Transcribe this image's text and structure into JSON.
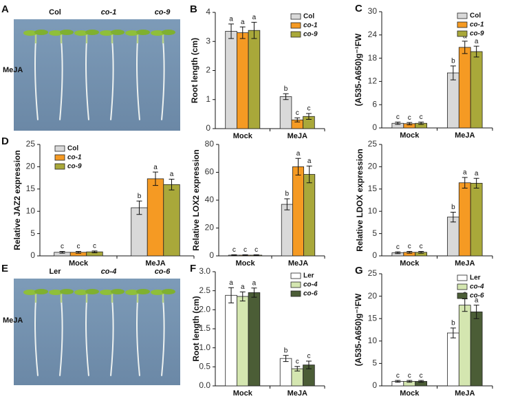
{
  "photos": [
    {
      "panel": "A",
      "labels": [
        "Col",
        "co-1",
        "co-9"
      ],
      "treatment": "MeJA"
    },
    {
      "panel": "E",
      "labels": [
        "Ler",
        "co-4",
        "co-6"
      ],
      "treatment": "MeJA"
    }
  ],
  "chart_data": [
    {
      "type": "bar",
      "panel": "B",
      "ylabel": "Root length (cm)",
      "categories": [
        "Mock",
        "MeJA"
      ],
      "legend": true,
      "ylim": [
        0,
        4
      ],
      "yticks": [
        0,
        1,
        2,
        3,
        4
      ],
      "series": [
        {
          "name": "Col",
          "color": "#d9d9d9",
          "values": [
            3.35,
            1.1
          ],
          "errors": [
            0.25,
            0.1
          ],
          "letters": [
            "a",
            "b"
          ]
        },
        {
          "name": "co-1",
          "color": "#f59a23",
          "values": [
            3.3,
            0.3
          ],
          "errors": [
            0.2,
            0.07
          ],
          "letters": [
            "a",
            "c"
          ]
        },
        {
          "name": "co-9",
          "color": "#a9a83a",
          "values": [
            3.38,
            0.42
          ],
          "errors": [
            0.28,
            0.1
          ],
          "letters": [
            "a",
            "c"
          ]
        }
      ]
    },
    {
      "type": "bar",
      "panel": "C",
      "ylabel": "(A535-A650)g⁻¹FW",
      "categories": [
        "Mock",
        "MeJA"
      ],
      "legend": true,
      "ylim": [
        0,
        30
      ],
      "yticks": [
        0,
        6,
        12,
        18,
        24,
        30
      ],
      "series": [
        {
          "name": "Col",
          "color": "#d9d9d9",
          "values": [
            1.2,
            14.2
          ],
          "errors": [
            0.3,
            1.8
          ],
          "letters": [
            "c",
            "b"
          ]
        },
        {
          "name": "co-1",
          "color": "#f59a23",
          "values": [
            1.1,
            20.8
          ],
          "errors": [
            0.3,
            1.6
          ],
          "letters": [
            "c",
            "a"
          ]
        },
        {
          "name": "co-9",
          "color": "#a9a83a",
          "values": [
            1.2,
            19.7
          ],
          "errors": [
            0.3,
            1.4
          ],
          "letters": [
            "c",
            "a"
          ]
        }
      ]
    },
    {
      "type": "bar",
      "panel": "D",
      "ylabel": "Relative JAZ2 expression",
      "categories": [
        "Mock",
        "MeJA"
      ],
      "legend": true,
      "ylim": [
        0,
        25
      ],
      "yticks": [
        0,
        5,
        10,
        15,
        20,
        25
      ],
      "series": [
        {
          "name": "Col",
          "color": "#d9d9d9",
          "values": [
            0.8,
            10.8
          ],
          "errors": [
            0.2,
            1.5
          ],
          "letters": [
            "c",
            "b"
          ]
        },
        {
          "name": "co-1",
          "color": "#f59a23",
          "values": [
            0.8,
            17.3
          ],
          "errors": [
            0.2,
            1.5
          ],
          "letters": [
            "c",
            "a"
          ]
        },
        {
          "name": "co-9",
          "color": "#a9a83a",
          "values": [
            0.9,
            16
          ],
          "errors": [
            0.2,
            1.2
          ],
          "letters": [
            "c",
            "a"
          ]
        }
      ]
    },
    {
      "type": "bar",
      "ylabel": "Relative LOX2 expression",
      "categories": [
        "Mock",
        "MeJA"
      ],
      "legend": false,
      "ylim": [
        0,
        80
      ],
      "yticks": [
        0,
        20,
        40,
        60,
        80
      ],
      "series": [
        {
          "name": "Col",
          "color": "#d9d9d9",
          "values": [
            0.5,
            37
          ],
          "errors": [
            0.3,
            4
          ],
          "letters": [
            "c",
            "b"
          ]
        },
        {
          "name": "co-1",
          "color": "#f59a23",
          "values": [
            0.5,
            64
          ],
          "errors": [
            0.3,
            6
          ],
          "letters": [
            "c",
            "a"
          ]
        },
        {
          "name": "co-9",
          "color": "#a9a83a",
          "values": [
            0.5,
            58.5
          ],
          "errors": [
            0.3,
            6
          ],
          "letters": [
            "c",
            "a"
          ]
        }
      ]
    },
    {
      "type": "bar",
      "ylabel": "Relative LDOX expression",
      "categories": [
        "Mock",
        "MeJA"
      ],
      "legend": false,
      "ylim": [
        0,
        25
      ],
      "yticks": [
        0,
        5,
        10,
        15,
        20,
        25
      ],
      "series": [
        {
          "name": "Col",
          "color": "#d9d9d9",
          "values": [
            0.7,
            8.7
          ],
          "errors": [
            0.2,
            1.1
          ],
          "letters": [
            "c",
            "b"
          ]
        },
        {
          "name": "co-1",
          "color": "#f59a23",
          "values": [
            0.8,
            16.4
          ],
          "errors": [
            0.2,
            1.2
          ],
          "letters": [
            "c",
            "a"
          ]
        },
        {
          "name": "co-9",
          "color": "#a9a83a",
          "values": [
            0.8,
            16.3
          ],
          "errors": [
            0.2,
            1.1
          ],
          "letters": [
            "c",
            "a"
          ]
        }
      ]
    },
    {
      "type": "bar",
      "panel": "F",
      "ylabel": "Root length (cm)",
      "categories": [
        "Mock",
        "MeJA"
      ],
      "legend": true,
      "ylim": [
        0,
        3
      ],
      "yticks": [
        {
          "value": 0,
          "label": "0.0"
        },
        {
          "value": 0.5,
          "label": "0.5"
        },
        {
          "value": 1,
          "label": "1.0"
        },
        {
          "value": 1.5,
          "label": "1.5"
        },
        {
          "value": 2,
          "label": "2.0"
        },
        {
          "value": 2.5,
          "label": "2.5"
        },
        {
          "value": 3,
          "label": "3.0"
        }
      ],
      "series": [
        {
          "name": "Ler",
          "color": "#ffffff",
          "values": [
            2.38,
            0.72
          ],
          "errors": [
            0.2,
            0.08
          ],
          "letters": [
            "a",
            "b"
          ]
        },
        {
          "name": "co-4",
          "color": "#d4e6b0",
          "values": [
            2.35,
            0.45
          ],
          "errors": [
            0.12,
            0.06
          ],
          "letters": [
            "a",
            "c"
          ]
        },
        {
          "name": "co-6",
          "color": "#4b5d36",
          "values": [
            2.45,
            0.55
          ],
          "errors": [
            0.12,
            0.1
          ],
          "letters": [
            "a",
            "c"
          ]
        }
      ]
    },
    {
      "type": "bar",
      "panel": "G",
      "ylabel": "(A535-A650)g⁻¹FW",
      "categories": [
        "Mock",
        "MeJA"
      ],
      "legend": true,
      "ylim": [
        0,
        25
      ],
      "yticks": [
        0,
        5,
        10,
        15,
        20,
        25
      ],
      "series": [
        {
          "name": "Ler",
          "color": "#ffffff",
          "values": [
            1.0,
            11.8
          ],
          "errors": [
            0.2,
            1.1
          ],
          "letters": [
            "c",
            "b"
          ]
        },
        {
          "name": "co-4",
          "color": "#d4e6b0",
          "values": [
            1.0,
            18
          ],
          "errors": [
            0.2,
            1.4
          ],
          "letters": [
            "c",
            "a"
          ]
        },
        {
          "name": "co-6",
          "color": "#4b5d36",
          "values": [
            1.0,
            16.5
          ],
          "errors": [
            0.2,
            1.5
          ],
          "letters": [
            "c",
            "a"
          ]
        }
      ]
    }
  ]
}
